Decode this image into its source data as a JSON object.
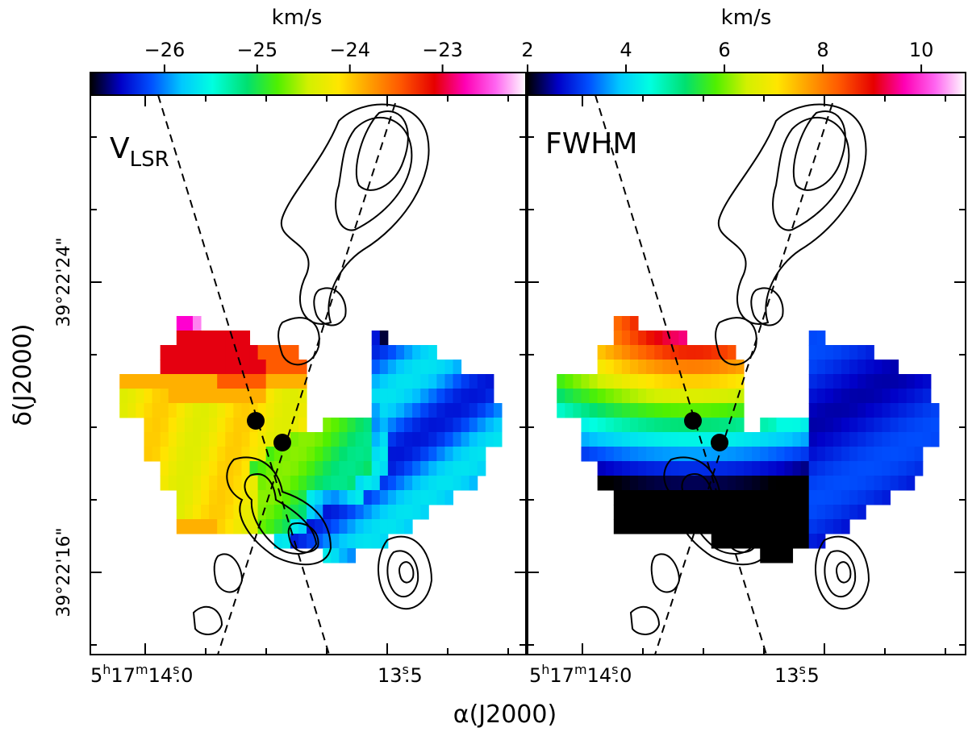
{
  "chart_data": [
    {
      "type": "heatmap",
      "panel_label": "V",
      "panel_label_sub": "LSR",
      "colorbar": {
        "unit_label": "km/s",
        "ticks": [
          "−26",
          "−25",
          "−24",
          "−23"
        ],
        "tick_values": [
          -26,
          -25,
          -24,
          -23
        ],
        "range": [
          -26.8,
          -22.1
        ],
        "colormap": [
          "#000000",
          "#0000c8",
          "#0050ff",
          "#00c8ff",
          "#00ffe0",
          "#00e070",
          "#50f000",
          "#d2f000",
          "#ffe600",
          "#ffa000",
          "#ff5a00",
          "#e60000",
          "#ff00b4",
          "#ff64f0",
          "#ffffff"
        ]
      },
      "xlim": [
        "5h17m14.15s",
        "13.30s"
      ],
      "ylim": [
        "39°22'13\"",
        "39°22'29\""
      ],
      "grid": false,
      "map_rows": [
        "..........PPM.........................",
        "..........RRRRRRRRR...............BK......",
        "........RRRRRRRRRRRRrrrrr.........BBBBBBBB..........",
        "........RRRRRRRRRRRRRrrrrr........BBBBBBBBBBB........",
        "...OOOOOOOOOOOOrrrrrrOOOOO........BBBBBBBBBBBBBBB...",
        "...YYYYYYOOOOOOOOOOOOYYYYY........BBBBBBBBBBBBBBB...",
        "...YYYYYYYYYYYYYYYYYYYYYYY........CBBBBBBBBBBBBBBB..",
        "......YYYYYYYYYYYYYYYYYYYY..GGGGGGCCBBBBBBBBBBBBBB..",
        "......YYYYYYYYYYYYYYYYYYGGGGGGGGGGCCBBBBBBBBBBBBBB..",
        "......YYYYYYYYYYYYYYYGGGGGGGGGGGGGCCBBBBBBBBBBBB....",
        "........YYYYYYYYYYYGGGGGGGGGGGGGGGCCBBBBBBBBBBBB....",
        "........YYYYYYYYYYYYGGGGGGGGGGGGCCCBBBBBBBBBBBB.....",
        "..........YYYYYYYYYYGGGGGGCCCCCCCBBBBBBBBBBB........",
        "..........YYYYYYYYYYGGGGGGCCBBBBBBBBBBBBB...........",
        "..........OOOOOYYYYYGGGGCCBBBBBBBBBBBBB.............",
        "......................CCBBBBBBBBBBBB...............",
        "............................CCCC...................."
      ],
      "markers": [
        {
          "ra_s": 13.84,
          "dec_as": 21.0
        },
        {
          "ra_s": 13.79,
          "dec_as": 20.4
        }
      ]
    },
    {
      "type": "heatmap",
      "panel_label": "FWHM",
      "colorbar": {
        "unit_label": "km/s",
        "ticks": [
          "2",
          "4",
          "6",
          "8",
          "10"
        ],
        "tick_values": [
          2,
          4,
          6,
          8,
          10
        ],
        "range": [
          2.0,
          10.9
        ],
        "colormap": [
          "#000000",
          "#0000c8",
          "#0050ff",
          "#00c8ff",
          "#00ffe0",
          "#00e070",
          "#50f000",
          "#d2f000",
          "#ffe600",
          "#ffa000",
          "#ff5a00",
          "#e60000",
          "#ff00b4",
          "#ff64f0",
          "#ffffff"
        ]
      },
      "xlim": [
        "5h17m14.15s",
        "13.30s"
      ],
      "ylim": [
        "39°22'13\"",
        "39°22'29\""
      ],
      "grid": false,
      "markers": [
        {
          "ra_s": 13.84,
          "dec_as": 21.0
        },
        {
          "ra_s": 13.79,
          "dec_as": 20.4
        }
      ]
    }
  ],
  "axes": {
    "ylabel": "δ(J2000)",
    "xlabel": "α(J2000)",
    "y_ticks": [
      "39°22'24\"",
      "39°22'16\""
    ],
    "x_ticks": [
      {
        "h": "5",
        "m": "17",
        "s": "14",
        "frac": ".0"
      },
      {
        "h": "",
        "m": "",
        "s": "13",
        "frac": ".5"
      }
    ],
    "x_ticks_right": [
      {
        "h": "5",
        "m": "17",
        "s": "14",
        "frac": ".0"
      },
      {
        "h": "",
        "m": "",
        "s": "13",
        "frac": ".5"
      }
    ]
  }
}
